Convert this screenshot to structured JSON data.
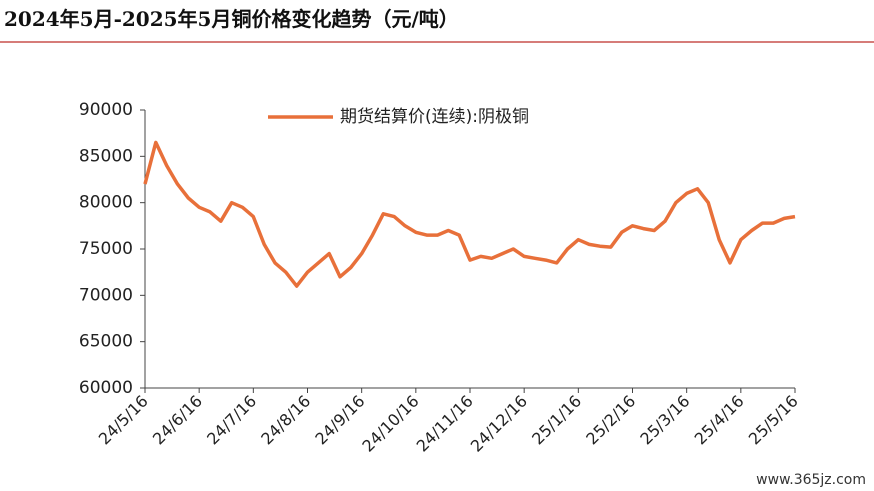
{
  "chart_data": {
    "type": "line",
    "title": "2024年5月-2025年5月铜价格变化趋势（元/吨）",
    "categories": [
      "24/5/16",
      null,
      null,
      null,
      null,
      "24/6/16",
      null,
      null,
      null,
      null,
      "24/7/16",
      null,
      null,
      null,
      null,
      "24/8/16",
      null,
      null,
      null,
      null,
      "24/9/16",
      null,
      null,
      null,
      null,
      "24/10/16",
      null,
      null,
      null,
      null,
      "24/11/16",
      null,
      null,
      null,
      null,
      "24/12/16",
      null,
      null,
      null,
      null,
      "25/1/16",
      null,
      null,
      null,
      null,
      "25/2/16",
      null,
      null,
      null,
      null,
      "25/3/16",
      null,
      null,
      null,
      null,
      "25/4/16",
      null,
      null,
      null,
      null,
      "25/5/16"
    ],
    "series": [
      {
        "name": "期货结算价(连续):阴极铜",
        "color": "#e8703a",
        "values": [
          82000,
          86500,
          84000,
          82000,
          80500,
          79500,
          79000,
          78000,
          80000,
          79500,
          78500,
          75500,
          73500,
          72500,
          71000,
          72500,
          73500,
          74500,
          72000,
          73000,
          74500,
          76500,
          78800,
          78500,
          77500,
          76800,
          76500,
          76500,
          77000,
          76500,
          73800,
          74200,
          74000,
          74500,
          75000,
          74200,
          74000,
          73800,
          73500,
          75000,
          76000,
          75500,
          75300,
          75200,
          76800,
          77500,
          77200,
          77000,
          78000,
          80000,
          81000,
          81500,
          80000,
          76000,
          73500,
          76000,
          77000,
          77800,
          77800,
          78300,
          78500
        ]
      }
    ],
    "ylim": [
      60000,
      90000
    ],
    "yticks": [
      60000,
      65000,
      70000,
      75000,
      80000,
      85000,
      90000
    ],
    "grid": false,
    "legend": "top"
  },
  "watermark": "www.365jz.com"
}
